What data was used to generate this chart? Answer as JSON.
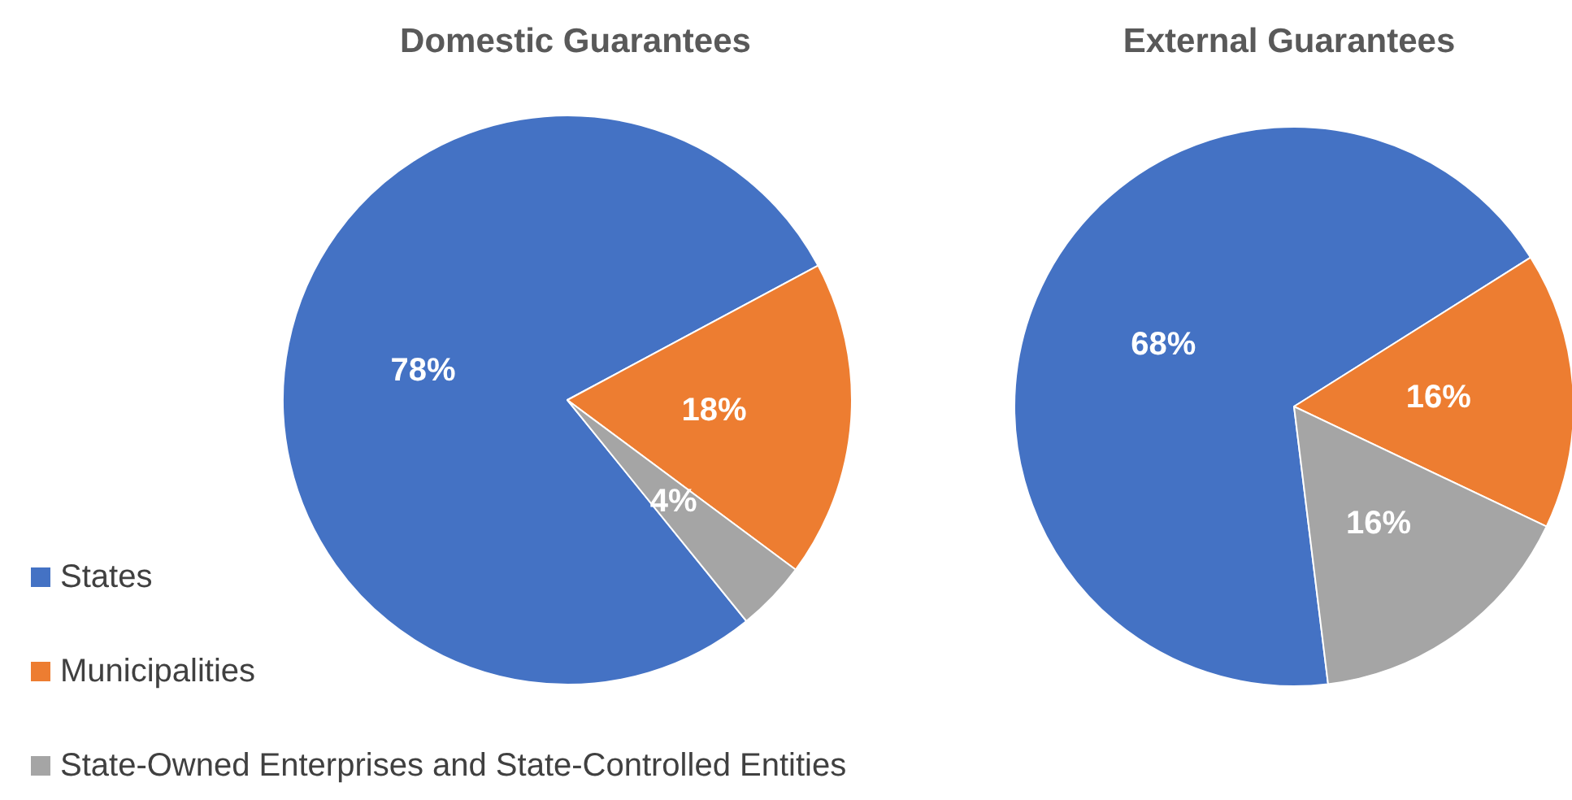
{
  "chart_data": [
    {
      "type": "pie",
      "title": "Domestic Guarantees",
      "categories": [
        "States",
        "Municipalities",
        "State-Owned Enterprises and State-Controlled Entities"
      ],
      "values": [
        78,
        18,
        4
      ],
      "colors": [
        "#4472c4",
        "#ed7d31",
        "#a5a5a5"
      ],
      "value_labels": [
        "78%",
        "18%",
        "4%"
      ],
      "legend": "bottom left"
    },
    {
      "type": "pie",
      "title": "External Guarantees",
      "categories": [
        null,
        null,
        null
      ],
      "values": [
        68,
        16,
        16
      ],
      "colors": [
        "#4472c4",
        "#ed7d31",
        "#a5a5a5"
      ],
      "value_labels": [
        "68%",
        "16%",
        "16%"
      ]
    }
  ]
}
